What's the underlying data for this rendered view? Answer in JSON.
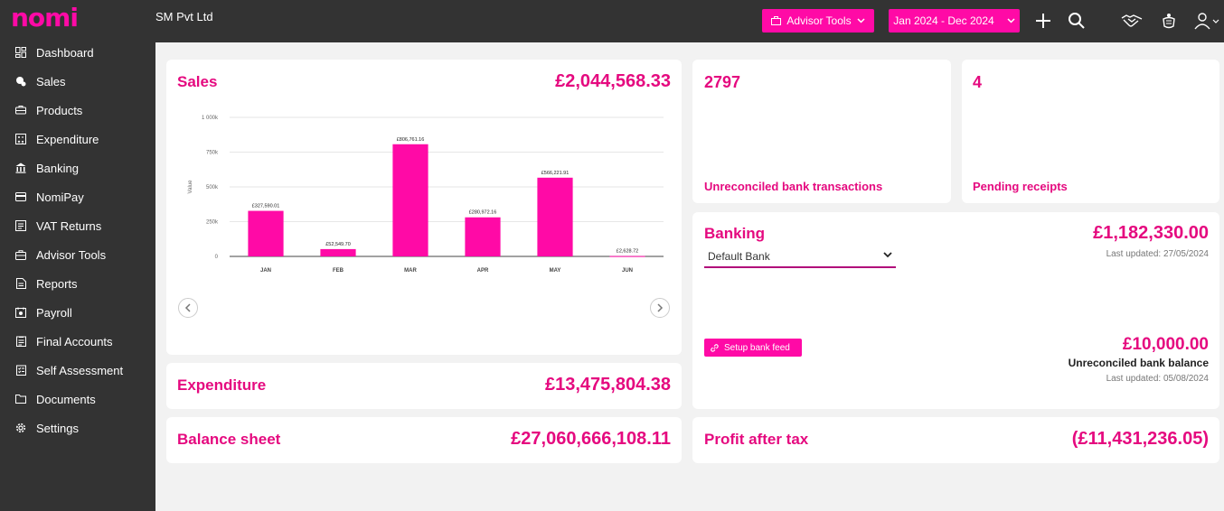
{
  "app": {
    "logo": "nomi",
    "company": "SM Pvt Ltd"
  },
  "header": {
    "advisor_tools_label": "Advisor Tools",
    "date_range_label": "Jan 2024 - Dec 2024",
    "icons": [
      "plus-icon",
      "search-icon",
      "handshake-icon",
      "crest-icon",
      "user-icon"
    ]
  },
  "sidebar": {
    "items": [
      {
        "label": "Dashboard",
        "icon": "dashboard-icon"
      },
      {
        "label": "Sales",
        "icon": "sales-icon"
      },
      {
        "label": "Products",
        "icon": "products-icon"
      },
      {
        "label": "Expenditure",
        "icon": "expenditure-icon"
      },
      {
        "label": "Banking",
        "icon": "bank-icon"
      },
      {
        "label": "NomiPay",
        "icon": "card-icon"
      },
      {
        "label": "VAT Returns",
        "icon": "vat-icon"
      },
      {
        "label": "Advisor Tools",
        "icon": "briefcase-icon"
      },
      {
        "label": "Reports",
        "icon": "reports-icon"
      },
      {
        "label": "Payroll",
        "icon": "payroll-icon"
      },
      {
        "label": "Final Accounts",
        "icon": "final-accounts-icon"
      },
      {
        "label": "Self Assessment",
        "icon": "self-assessment-icon"
      },
      {
        "label": "Documents",
        "icon": "folder-icon"
      },
      {
        "label": "Settings",
        "icon": "gear-icon"
      }
    ]
  },
  "sales": {
    "title": "Sales",
    "amount": "£2,044,568.33"
  },
  "chart_data": {
    "type": "bar",
    "categories": [
      "JAN",
      "FEB",
      "MAR",
      "APR",
      "MAY",
      "JUN"
    ],
    "values": [
      327590.01,
      52549.7,
      806761.16,
      280972.16,
      566221.91,
      2628.72
    ],
    "data_labels": [
      "£327,590.01",
      "£52,549.70",
      "£806,761.16",
      "£280,972.16",
      "£566,221.91",
      "£2,628.72"
    ],
    "ylabel": "Value",
    "ylim": [
      0,
      1000000
    ],
    "yticks": [
      0,
      250000,
      500000,
      750000,
      1000000
    ],
    "ytick_labels": [
      "0",
      "250k",
      "500k",
      "750k",
      "1 000k"
    ],
    "grid": true,
    "bar_color": "#ff0aa6"
  },
  "unreconciled": {
    "count": "2797",
    "label": "Unreconciled bank transactions"
  },
  "pending": {
    "count": "4",
    "label": "Pending receipts"
  },
  "banking": {
    "title": "Banking",
    "amount": "£1,182,330.00",
    "last_updated": "Last updated: 27/05/2024",
    "selected_bank": "Default Bank",
    "setup_label": "Setup bank feed",
    "unreconciled_amount": "£10,000.00",
    "unreconciled_label": "Unreconciled bank balance",
    "unreconciled_updated": "Last updated: 05/08/2024"
  },
  "expenditure": {
    "title": "Expenditure",
    "amount": "£13,475,804.38"
  },
  "balance_sheet": {
    "title": "Balance sheet",
    "amount": "£27,060,666,108.11"
  },
  "profit": {
    "title": "Profit after tax",
    "amount": "(£11,431,236.05)"
  },
  "colors": {
    "accent": "#ff0aa6",
    "title_pink": "#e5097f",
    "dark": "#333333"
  }
}
